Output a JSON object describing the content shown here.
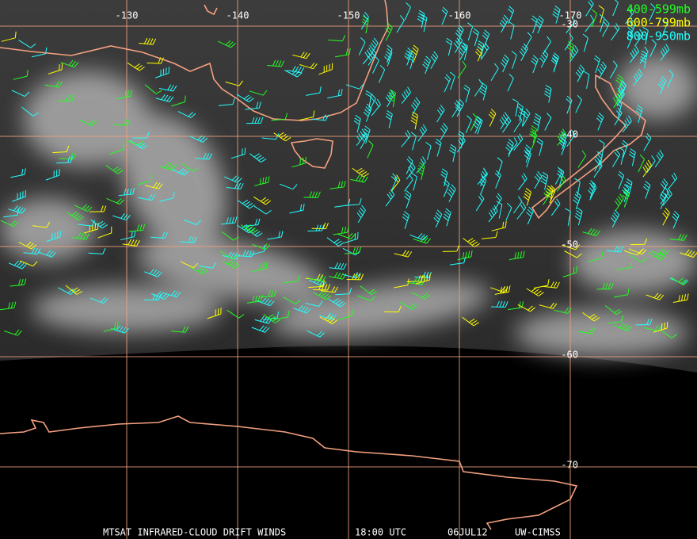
{
  "map": {
    "longitude_labels": [
      "-130",
      "-140",
      "-150",
      "-160",
      "-170"
    ],
    "latitude_labels": [
      "-30",
      "-40",
      "-50",
      "-60",
      "-70"
    ],
    "legend": [
      {
        "label": "400-599mb",
        "color": "#22ff22"
      },
      {
        "label": "600-799mb",
        "color": "#ffff00"
      },
      {
        "label": "800-950mb",
        "color": "#22ffff"
      }
    ],
    "footer": [
      "MTSAT INFRARED-CLOUD DRIFT WINDS",
      "18:00 UTC",
      "06JUL12",
      "UW-CIMSS"
    ]
  }
}
